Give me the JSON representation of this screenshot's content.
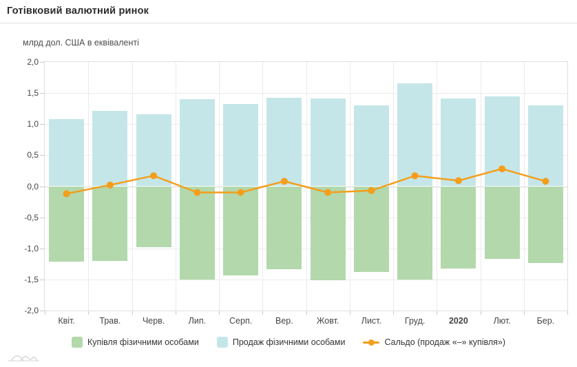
{
  "header": {
    "title": "Готівковий валютний ринок"
  },
  "chart_data": {
    "type": "bar",
    "subtype": "bar+line",
    "unit_label": "млрд дол. США в еквіваленті",
    "categories": [
      "Квіт.",
      "Трав.",
      "Черв.",
      "Лип.",
      "Серп.",
      "Вер.",
      "Жовт.",
      "Лист.",
      "Груд.",
      "2020",
      "Лют.",
      "Бер."
    ],
    "bold_category": "2020",
    "series": [
      {
        "name": "Купівля фізичними особами",
        "type": "bar",
        "color": "#b2d8ac",
        "values": [
          -1.21,
          -1.2,
          -0.98,
          -1.5,
          -1.43,
          -1.34,
          -1.51,
          -1.38,
          -1.5,
          -1.32,
          -1.17,
          -1.23
        ]
      },
      {
        "name": "Продаж фізичними особами",
        "type": "bar",
        "color": "#c5e6e8",
        "values": [
          1.08,
          1.21,
          1.16,
          1.4,
          1.32,
          1.42,
          1.41,
          1.3,
          1.66,
          1.41,
          1.45,
          1.3
        ]
      },
      {
        "name": "Сальдо (продаж «–» купівля»)",
        "type": "line",
        "color": "#f49e1b",
        "values": [
          -0.12,
          0.02,
          0.17,
          -0.1,
          -0.1,
          0.08,
          -0.1,
          -0.07,
          0.17,
          0.09,
          0.28,
          0.08
        ]
      }
    ],
    "ylim": [
      -2.0,
      2.0
    ],
    "ytick_step": 0.5,
    "ytick_labels": [
      "2,0",
      "1,5",
      "1,0",
      "0,5",
      "0,0",
      "-0,5",
      "-1,0",
      "-1,5",
      "-2,0"
    ],
    "grid": true,
    "legend_position": "bottom"
  }
}
